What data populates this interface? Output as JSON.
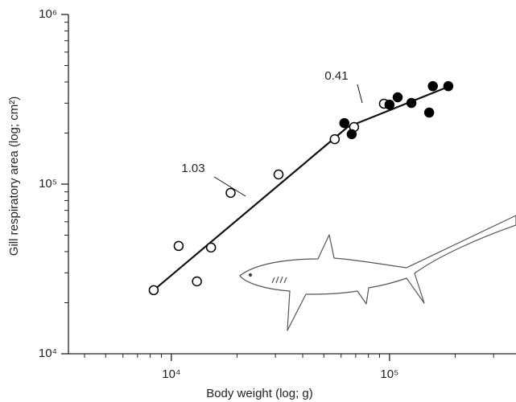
{
  "chart_data": {
    "type": "scatter",
    "x_label": "Body weight (log; g)",
    "y_label": "Gill respiratory area (log; cm²)",
    "log_x": true,
    "log_y": true,
    "xlim": [
      3375,
      380000
    ],
    "ylim": [
      10000,
      1000000
    ],
    "xticks": [
      {
        "value": 10000,
        "label": "10⁴"
      },
      {
        "value": 100000,
        "label": "10⁵"
      }
    ],
    "yticks": [
      {
        "value": 10000,
        "label": "10⁴"
      },
      {
        "value": 100000,
        "label": "10⁵"
      },
      {
        "value": 1000000,
        "label": "10⁶"
      }
    ],
    "x_minor_ticks": [
      4000,
      5000,
      6000,
      7000,
      8000,
      9000,
      20000,
      30000,
      40000,
      50000,
      60000,
      70000,
      80000,
      90000,
      200000,
      300000
    ],
    "y_minor_ticks": [
      20000,
      30000,
      40000,
      50000,
      60000,
      70000,
      80000,
      90000,
      200000,
      300000,
      400000,
      500000,
      600000,
      700000,
      800000,
      900000
    ],
    "series": [
      {
        "marker": "open",
        "color": "#000000",
        "x": [
          8300,
          10800,
          13100,
          15200,
          18700,
          31000,
          56100,
          68800,
          94300
        ],
        "values": [
          23700,
          43200,
          26700,
          42300,
          88800,
          114000,
          184000,
          217000,
          298000
        ]
      },
      {
        "marker": "filled",
        "color": "#000000",
        "x": [
          62100,
          67100,
          100000,
          109000,
          126000,
          152000,
          158000,
          186000
        ],
        "values": [
          229000,
          197000,
          294000,
          325000,
          301000,
          264000,
          378000,
          378000
        ]
      }
    ],
    "fit_lines": [
      {
        "label": "1.03",
        "x": [
          8300,
          64300
        ],
        "values": [
          23700,
          217000
        ]
      },
      {
        "label": "0.41",
        "x": [
          64300,
          186000
        ],
        "values": [
          217000,
          375000
        ]
      }
    ]
  }
}
